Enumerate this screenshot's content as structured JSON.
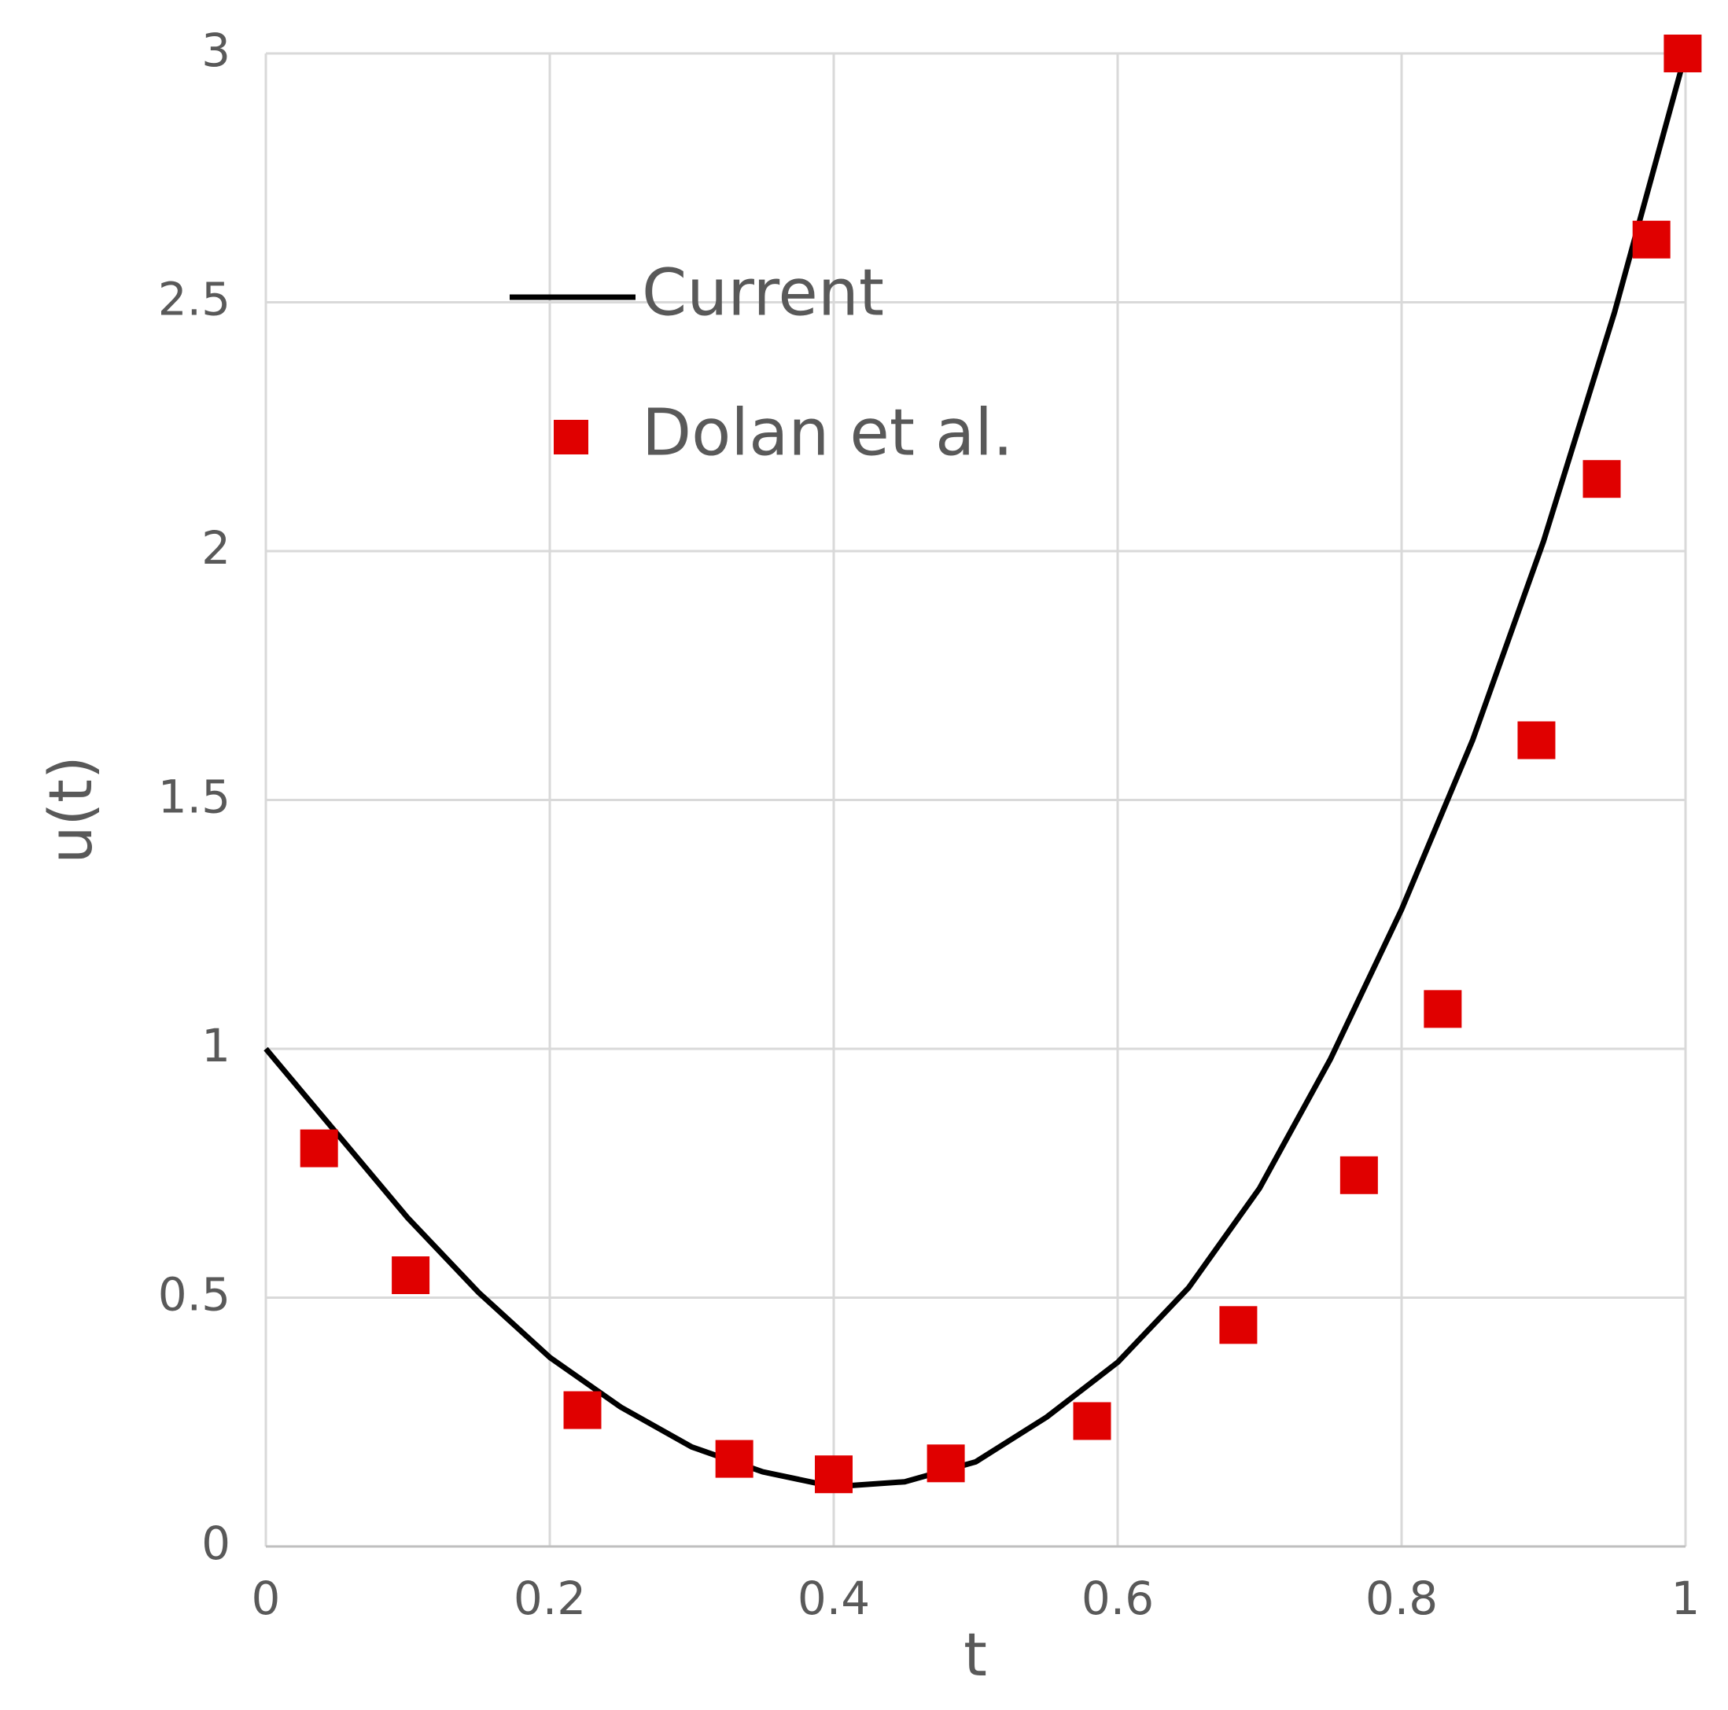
{
  "chart_data": {
    "type": "line",
    "x_label": "t",
    "y_label": "u(t)",
    "xlim": [
      0,
      1
    ],
    "xticks": [
      0,
      0.2,
      0.4,
      0.6,
      0.8,
      1
    ],
    "ylim": [
      0,
      3
    ],
    "yticks": [
      0,
      0.5,
      1,
      1.5,
      2,
      2.5,
      3
    ],
    "grid": true,
    "legend": "upper-left",
    "series": [
      {
        "name": "Current",
        "color": "#000000",
        "style": "line",
        "x": [
          0,
          0.05,
          0.1,
          0.15,
          0.2,
          0.25,
          0.3,
          0.35,
          0.4,
          0.45,
          0.5,
          0.55,
          0.6,
          0.65,
          0.7,
          0.75,
          0.8,
          0.85,
          0.9,
          0.95,
          1
        ],
        "values": [
          1.0,
          0.83,
          0.66,
          0.51,
          0.38,
          0.28,
          0.2,
          0.15,
          0.12,
          0.13,
          0.17,
          0.26,
          0.37,
          0.52,
          0.72,
          0.98,
          1.28,
          1.62,
          2.02,
          2.48,
          3.0
        ]
      },
      {
        "name": "Dolan et al.",
        "color": "#e00000",
        "style": "marker",
        "x": [
          0.0375,
          0.102,
          0.223,
          0.33,
          0.4,
          0.479,
          0.582,
          0.685,
          0.77,
          0.829,
          0.895,
          0.941,
          0.976,
          0.998
        ],
        "values": [
          0.8,
          0.545,
          0.274,
          0.176,
          0.145,
          0.167,
          0.252,
          0.445,
          0.746,
          1.08,
          1.62,
          2.145,
          2.626,
          3.0
        ]
      }
    ]
  }
}
